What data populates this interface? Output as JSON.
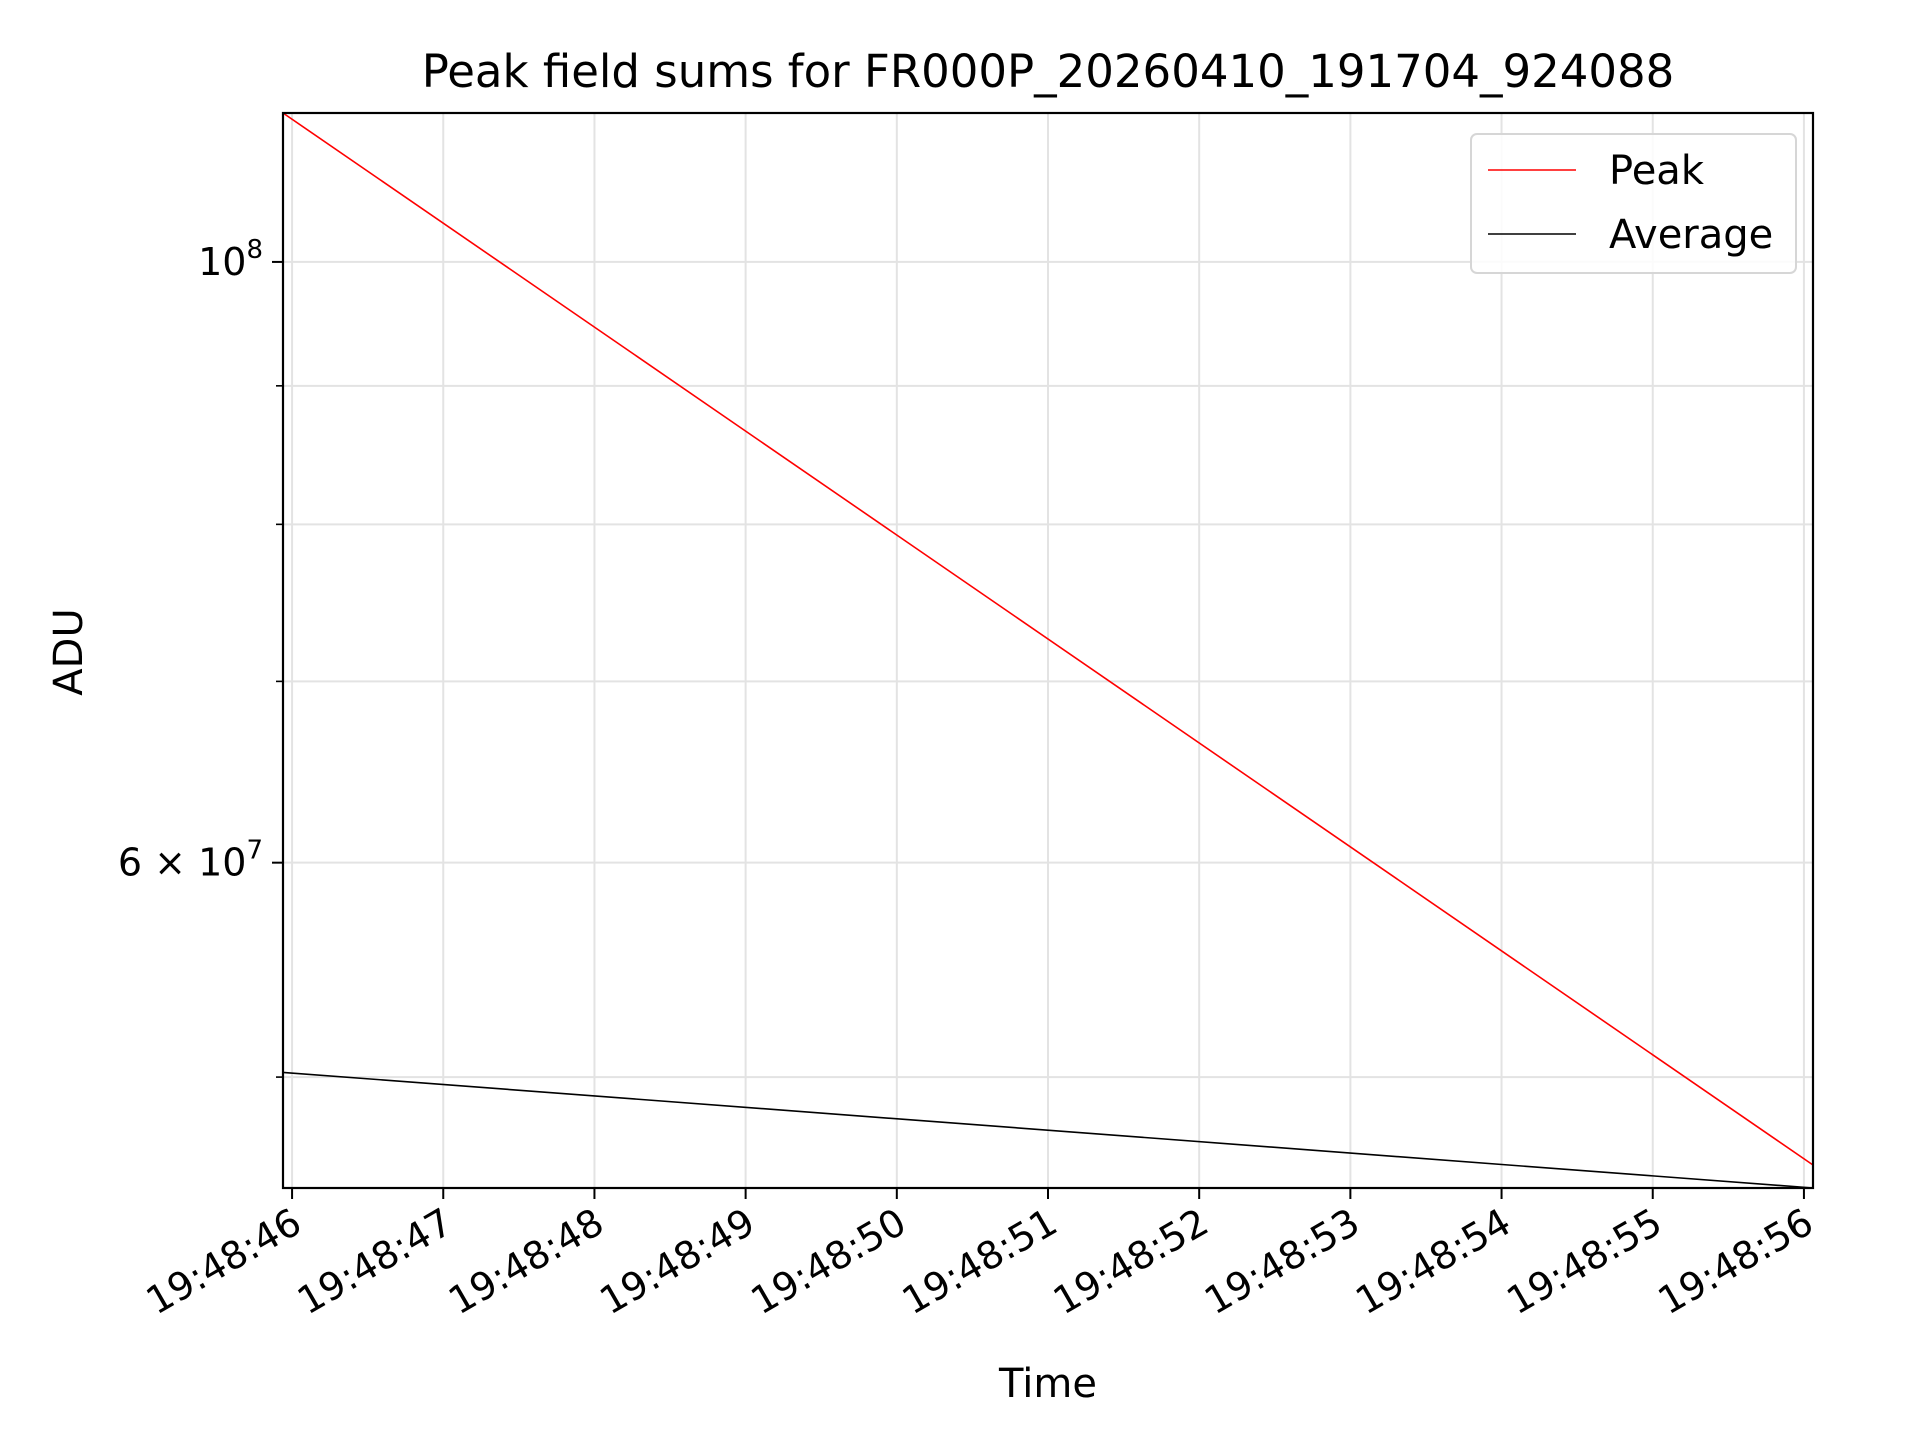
{
  "chart_data": {
    "type": "line",
    "title": "Peak field sums for FR000P_20260410_191704_924088",
    "xlabel": "Time",
    "ylabel": "ADU",
    "yscale": "log",
    "grid": true,
    "legend_position": "top-right",
    "x_ticks": [
      "19:48:46",
      "19:48:47",
      "19:48:48",
      "19:48:49",
      "19:48:50",
      "19:48:51",
      "19:48:52",
      "19:48:53",
      "19:48:54",
      "19:48:55",
      "19:48:56"
    ],
    "y_ticks_major": [
      {
        "value": 100000000,
        "base": "10",
        "exp": "8",
        "prefix": ""
      },
      {
        "value": 60000000,
        "base": "10",
        "exp": "7",
        "prefix": "6 × "
      }
    ],
    "y_ticks_minor": [
      50000000,
      70000000,
      80000000,
      90000000
    ],
    "x_range": [
      "19:48:45.94",
      "19:48:56.06"
    ],
    "y_range": [
      45500000,
      113500000
    ],
    "series": [
      {
        "name": "Peak",
        "color": "#ff0000",
        "points": [
          [
            "19:48:45.94",
            113500000
          ],
          [
            "19:48:56.06",
            46400000
          ]
        ]
      },
      {
        "name": "Average",
        "color": "#000000",
        "points": [
          [
            "19:48:45.94",
            50200000
          ],
          [
            "19:48:56.06",
            45500000
          ]
        ]
      }
    ]
  }
}
